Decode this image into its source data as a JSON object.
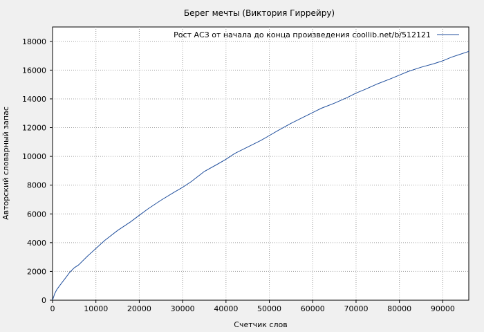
{
  "chart_data": {
    "type": "line",
    "title": "Берег мечты (Виктория Гиррейру)",
    "xlabel": "Счетчик слов",
    "ylabel": "Авторский словарный запас",
    "xlim": [
      0,
      96000
    ],
    "ylim": [
      0,
      19000
    ],
    "xticks": [
      0,
      10000,
      20000,
      30000,
      40000,
      50000,
      60000,
      70000,
      80000,
      90000
    ],
    "yticks": [
      0,
      2000,
      4000,
      6000,
      8000,
      10000,
      12000,
      14000,
      16000,
      18000
    ],
    "grid": true,
    "legend_position": "top-right",
    "series_color": "#1f4e9c",
    "series": [
      {
        "name": "Рост АСЗ от начала до конца произведения coollib.net/b/512121",
        "x": [
          0,
          500,
          1000,
          2000,
          3000,
          4000,
          5000,
          6000,
          8000,
          10000,
          12000,
          15000,
          18000,
          20000,
          22000,
          25000,
          28000,
          30000,
          32000,
          35000,
          38000,
          40000,
          42000,
          45000,
          48000,
          50000,
          52000,
          55000,
          58000,
          60000,
          62000,
          65000,
          68000,
          70000,
          72000,
          75000,
          78000,
          80000,
          82000,
          85000,
          88000,
          90000,
          92000,
          94000,
          96000
        ],
        "y": [
          0,
          450,
          750,
          1150,
          1550,
          1950,
          2250,
          2450,
          3050,
          3600,
          4150,
          4850,
          5450,
          5900,
          6350,
          6950,
          7500,
          7850,
          8250,
          8950,
          9450,
          9800,
          10200,
          10650,
          11100,
          11450,
          11800,
          12300,
          12750,
          13050,
          13350,
          13700,
          14100,
          14400,
          14650,
          15050,
          15400,
          15650,
          15900,
          16200,
          16450,
          16650,
          16900,
          17100,
          17300
        ]
      }
    ]
  }
}
